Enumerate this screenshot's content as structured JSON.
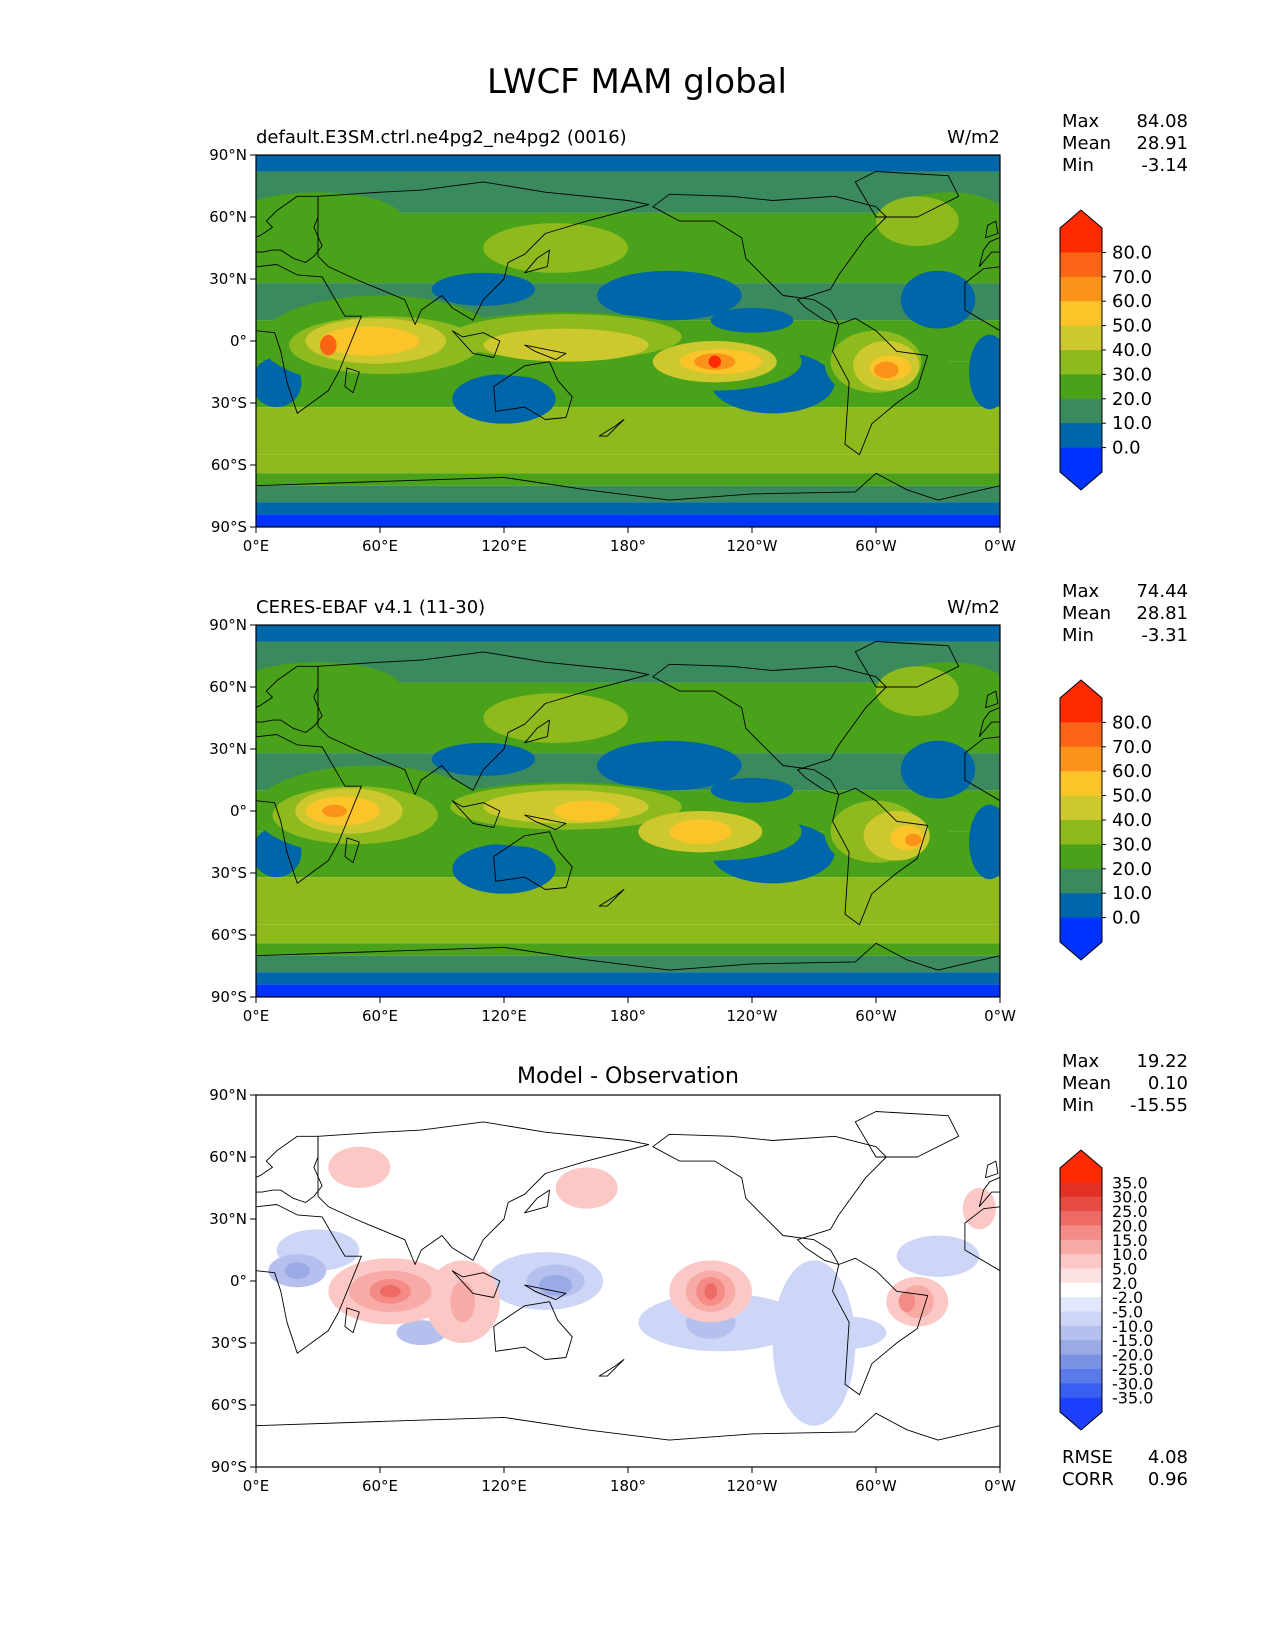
{
  "title": "LWCF MAM global",
  "lon_ticks": [
    "0°E",
    "60°E",
    "120°E",
    "180°",
    "120°W",
    "60°W",
    "0°W"
  ],
  "lat_ticks": [
    "90°N",
    "60°N",
    "30°N",
    "0°",
    "30°S",
    "60°S",
    "90°S"
  ],
  "stat_labels": {
    "max": "Max",
    "mean": "Mean",
    "min": "Min",
    "rmse": "RMSE",
    "corr": "CORR"
  },
  "colors": {
    "abs_levels": [
      "#0033ff",
      "#0066aa",
      "#3a8a5e",
      "#4aa21a",
      "#8fba1e",
      "#cdc82e",
      "#fbc52a",
      "#fb9219",
      "#fb6414",
      "#ff2a00"
    ],
    "diff_levels": [
      "#1f3fff",
      "#3a5ef2",
      "#5a7ae8",
      "#7b92e2",
      "#9aaae6",
      "#b5c0ee",
      "#cdd6f6",
      "#e2e8fb",
      "#ffffff",
      "#fbe1e1",
      "#fbc8c6",
      "#f8aaa7",
      "#f48b86",
      "#ee6b65",
      "#e84a44",
      "#e23124",
      "#ff2a00"
    ],
    "land_outline": "#000000"
  },
  "chart_data": [
    {
      "type": "heatmap",
      "subtitle": "default.E3SM.ctrl.ne4pg2_ne4pg2 (0016)",
      "units": "W/m2",
      "x_range": [
        0,
        360
      ],
      "y_range": [
        -90,
        90
      ],
      "stats": {
        "max": "84.08",
        "mean": "28.91",
        "min": "-3.14"
      },
      "colorbar_ticks": [
        "80.0",
        "70.0",
        "60.0",
        "50.0",
        "40.0",
        "30.0",
        "20.0",
        "10.0",
        "0.0"
      ],
      "colorbar_extend": "both"
    },
    {
      "type": "heatmap",
      "subtitle": "CERES-EBAF v4.1 (11-30)",
      "units": "W/m2",
      "x_range": [
        0,
        360
      ],
      "y_range": [
        -90,
        90
      ],
      "stats": {
        "max": "74.44",
        "mean": "28.81",
        "min": "-3.31"
      },
      "colorbar_ticks": [
        "80.0",
        "70.0",
        "60.0",
        "50.0",
        "40.0",
        "30.0",
        "20.0",
        "10.0",
        "0.0"
      ],
      "colorbar_extend": "both"
    },
    {
      "type": "heatmap",
      "subtitle": "Model - Observation",
      "units": "",
      "x_range": [
        0,
        360
      ],
      "y_range": [
        -90,
        90
      ],
      "stats": {
        "max": "19.22",
        "mean": "0.10",
        "min": "-15.55",
        "rmse": "4.08",
        "corr": "0.96"
      },
      "colorbar_ticks": [
        "35.0",
        "30.0",
        "25.0",
        "20.0",
        "15.0",
        "10.0",
        "5.0",
        "2.0",
        "-2.0",
        "-5.0",
        "-10.0",
        "-15.0",
        "-20.0",
        "-25.0",
        "-30.0",
        "-35.0"
      ],
      "colorbar_extend": "both"
    }
  ]
}
